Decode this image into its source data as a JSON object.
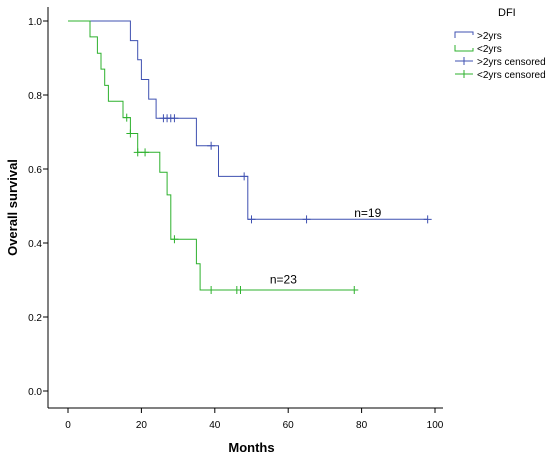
{
  "chart_data": {
    "type": "line",
    "title": "",
    "xlabel": "Months",
    "ylabel": "Overall survival",
    "xlim": [
      0,
      100
    ],
    "ylim": [
      0.0,
      1.0
    ],
    "xticks": [
      0,
      20,
      40,
      60,
      80,
      100
    ],
    "yticks": [
      0.0,
      0.2,
      0.4,
      0.6,
      0.8,
      1.0
    ],
    "yticks_fmt": 1,
    "grid": false,
    "legend": {
      "title": "DFI",
      "placement": "top-right",
      "entries": [
        ">2yrs",
        "<2yrs",
        ">2yrs censored",
        "<2yrs censored"
      ]
    },
    "series": [
      {
        "name": ">2yrs",
        "color": "#3f51b1",
        "step_x": [
          0,
          17,
          17,
          19,
          19,
          20,
          20,
          22,
          22,
          24,
          24,
          25,
          25,
          35,
          35,
          41,
          41,
          49,
          49,
          98
        ],
        "step_y": [
          1.0,
          1.0,
          0.947,
          0.947,
          0.895,
          0.895,
          0.842,
          0.842,
          0.789,
          0.789,
          0.737,
          0.737,
          0.737,
          0.737,
          0.663,
          0.663,
          0.58,
          0.58,
          0.464,
          0.464
        ],
        "censored_x": [
          26,
          27,
          28,
          29,
          39,
          48,
          50,
          65,
          98
        ],
        "censored_y": [
          0.737,
          0.737,
          0.737,
          0.737,
          0.663,
          0.58,
          0.464,
          0.464,
          0.464
        ]
      },
      {
        "name": "<2yrs",
        "color": "#2db12d",
        "step_x": [
          0,
          6,
          6,
          8,
          8,
          9,
          9,
          10,
          10,
          11,
          11,
          15,
          15,
          17,
          17,
          19,
          19,
          25,
          25,
          27,
          27,
          28,
          28,
          35,
          35,
          36,
          36,
          78
        ],
        "step_y": [
          1.0,
          1.0,
          0.957,
          0.957,
          0.913,
          0.913,
          0.87,
          0.87,
          0.826,
          0.826,
          0.783,
          0.783,
          0.739,
          0.739,
          0.696,
          0.696,
          0.645,
          0.645,
          0.591,
          0.591,
          0.53,
          0.53,
          0.41,
          0.41,
          0.344,
          0.344,
          0.273,
          0.273
        ],
        "censored_x": [
          16,
          17,
          19,
          21,
          29,
          39,
          46,
          47,
          78
        ],
        "censored_y": [
          0.739,
          0.696,
          0.645,
          0.645,
          0.41,
          0.273,
          0.273,
          0.273,
          0.273
        ]
      }
    ],
    "annotations": [
      {
        "text": "n=19",
        "x": 78,
        "y": 0.47
      },
      {
        "text": "n=23",
        "x": 55,
        "y": 0.29
      }
    ]
  }
}
